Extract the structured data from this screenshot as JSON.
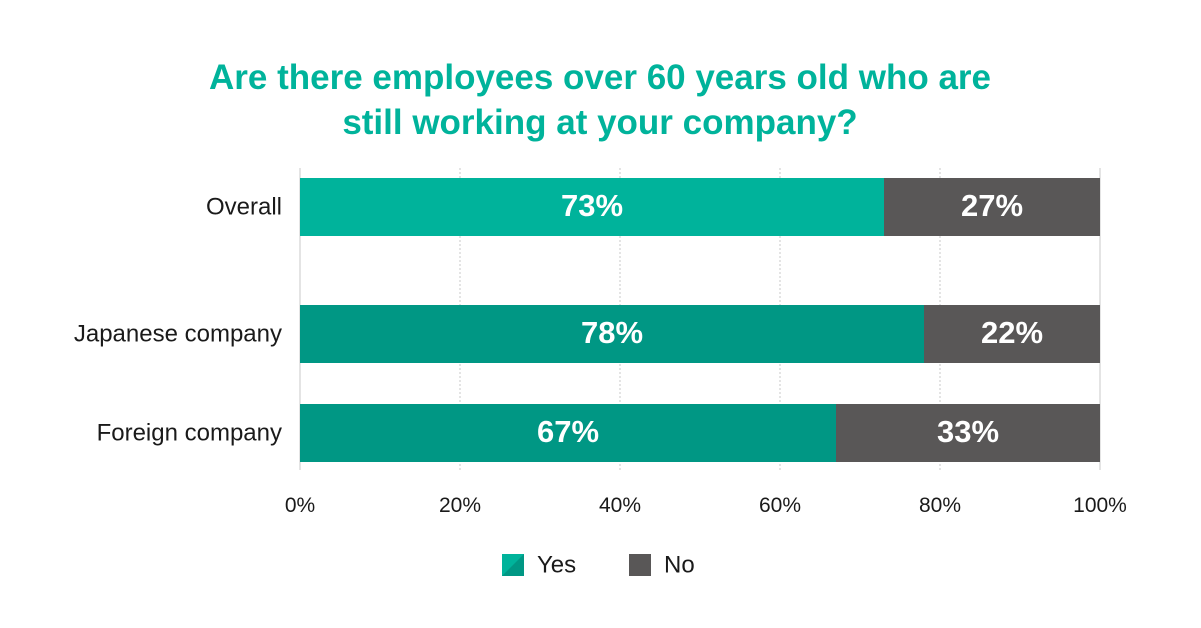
{
  "chart_data": {
    "type": "bar",
    "orientation": "horizontal",
    "stacked": true,
    "title_lines": [
      "Are there employees over 60 years old who are",
      "still working at your company?"
    ],
    "categories": [
      "Overall",
      "Japanese company",
      "Foreign company"
    ],
    "series": [
      {
        "name": "Yes",
        "values": [
          73,
          78,
          67
        ],
        "labels": [
          "73%",
          "78%",
          "67%"
        ]
      },
      {
        "name": "No",
        "values": [
          27,
          22,
          33
        ],
        "labels": [
          "27%",
          "22%",
          "33%"
        ]
      }
    ],
    "xlim": [
      0,
      100
    ],
    "x_ticks": [
      0,
      20,
      40,
      60,
      80,
      100
    ],
    "x_tick_labels": [
      "0%",
      "20%",
      "40%",
      "60%",
      "80%",
      "100%"
    ],
    "grid": true,
    "legend_position": "bottom-center",
    "colors": {
      "title": "#00b39b",
      "yes_overall": "#00b39b",
      "yes_subgroup": "#009784",
      "no": "#595757",
      "grid": "#c8c8c8"
    }
  }
}
